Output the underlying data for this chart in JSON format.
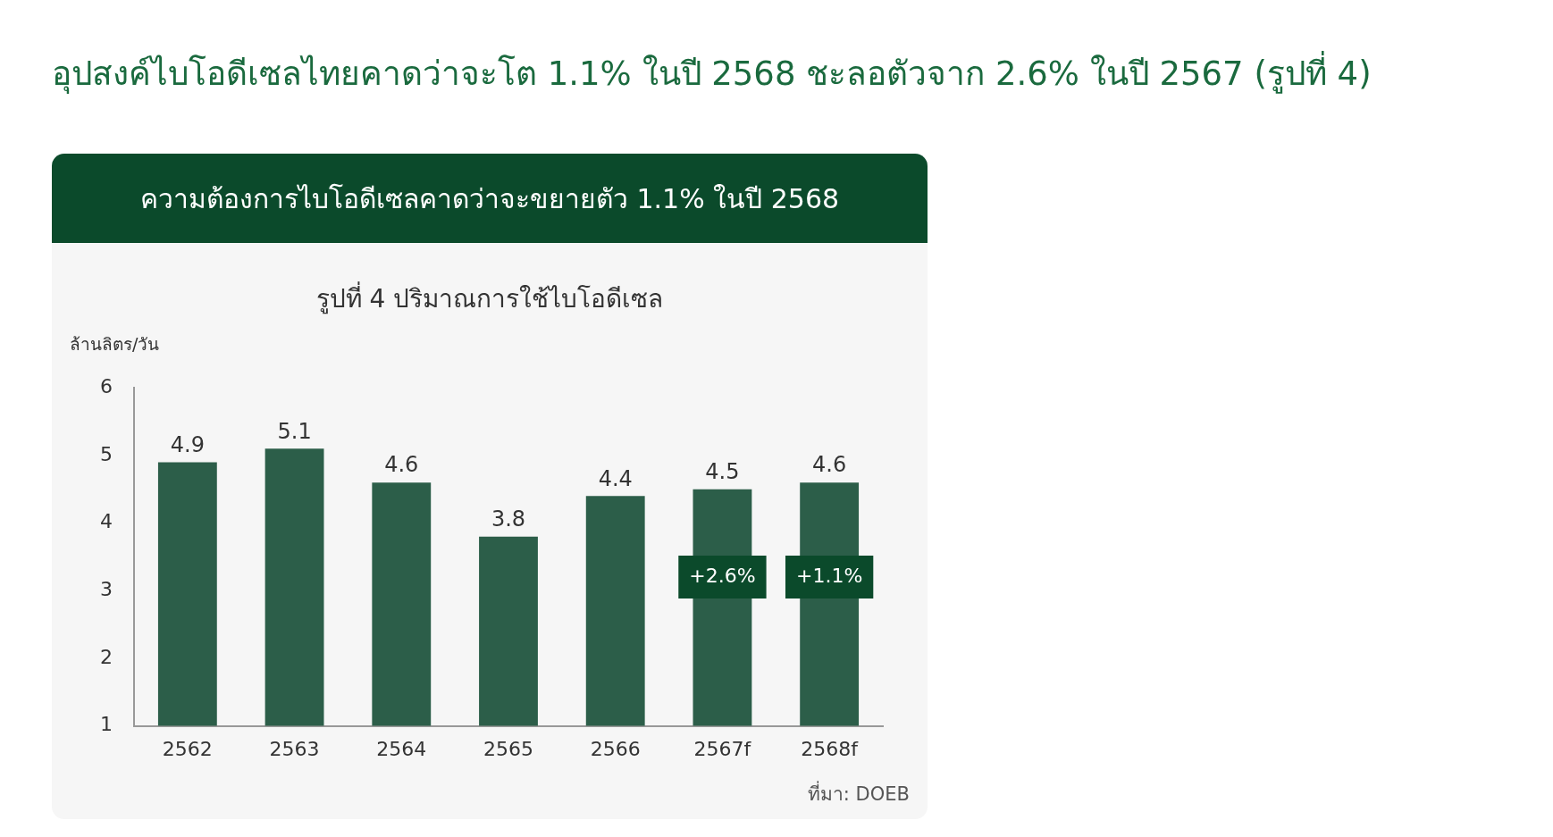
{
  "chart_data": {
    "type": "bar",
    "title": "อุปสงค์ไบโอดีเซลไทยคาดว่าจะโต 1.1% ในปี 2568 ชะลอตัวจาก 2.6% ในปี 2567 (รูปที่ 4)",
    "subtitle": "ความต้องการไบโอดีเซลคาดว่าจะขยายตัว 1.1% ในปี 2568",
    "ylabel": "ล้านลิตร/วัน",
    "categories": [
      "2562",
      "2563",
      "2564",
      "2565",
      "2566",
      "2567f",
      "2568f"
    ],
    "values": [
      4.9,
      5.1,
      4.6,
      3.8,
      4.4,
      4.5,
      4.6
    ],
    "color": "#2c5e49",
    "ylim": [
      1,
      6
    ],
    "yticks": [
      1,
      2,
      3,
      4,
      5,
      6
    ],
    "grid": false,
    "legend": false,
    "data_labels": true,
    "annotations": [
      "รูปที่ 4 ปริมาณการใช้ไบโอดีเซล",
      "+2.6%",
      "+1.1%",
      "ที่มา: DOEB"
    ]
  }
}
